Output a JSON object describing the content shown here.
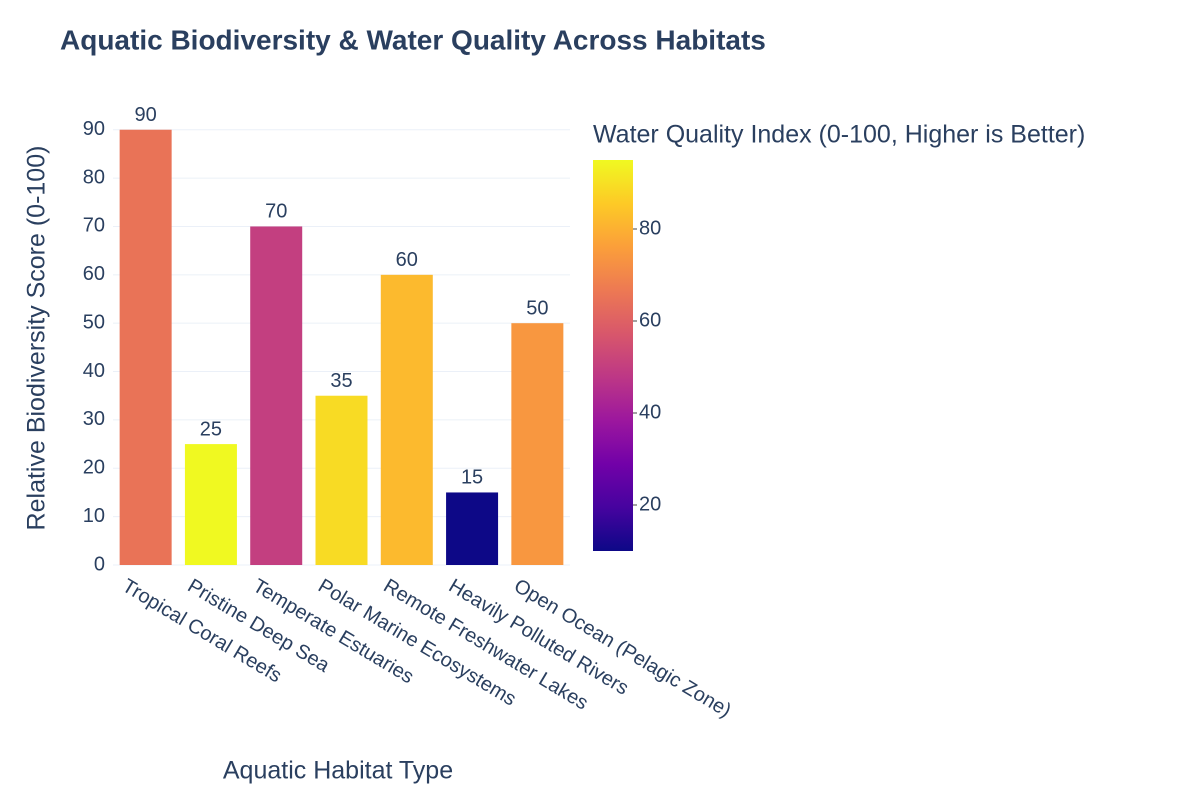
{
  "chart_data": {
    "type": "bar",
    "title": "Aquatic Biodiversity & Water Quality Across Habitats",
    "x_label": "Aquatic Habitat Type",
    "y_label": "Relative Biodiversity Score (0-100)",
    "categories": [
      "Tropical Coral Reefs",
      "Pristine Deep Sea",
      "Temperate Estuaries",
      "Polar Marine Ecosystems",
      "Remote Freshwater Lakes",
      "Heavily Polluted Rivers",
      "Open Ocean (Pelagic Zone)"
    ],
    "values": [
      90,
      25,
      70,
      35,
      60,
      15,
      50
    ],
    "color_values": [
      65,
      95,
      50,
      89,
      82,
      10,
      74
    ],
    "ylim": [
      0,
      94.7
    ],
    "yticks": [
      0,
      10,
      20,
      30,
      40,
      50,
      60,
      70,
      80,
      90
    ],
    "grid": true,
    "colorbar": {
      "title": "Water Quality Index (0-100, Higher is Better)",
      "clim": [
        10,
        95
      ],
      "ticks": [
        20,
        40,
        60,
        80
      ],
      "colorscale": [
        "#0d0887",
        "#46039f",
        "#7201a8",
        "#9c179e",
        "#bd3786",
        "#d8576b",
        "#ed7953",
        "#fb9f3a",
        "#fdca26",
        "#f0f921"
      ]
    }
  }
}
